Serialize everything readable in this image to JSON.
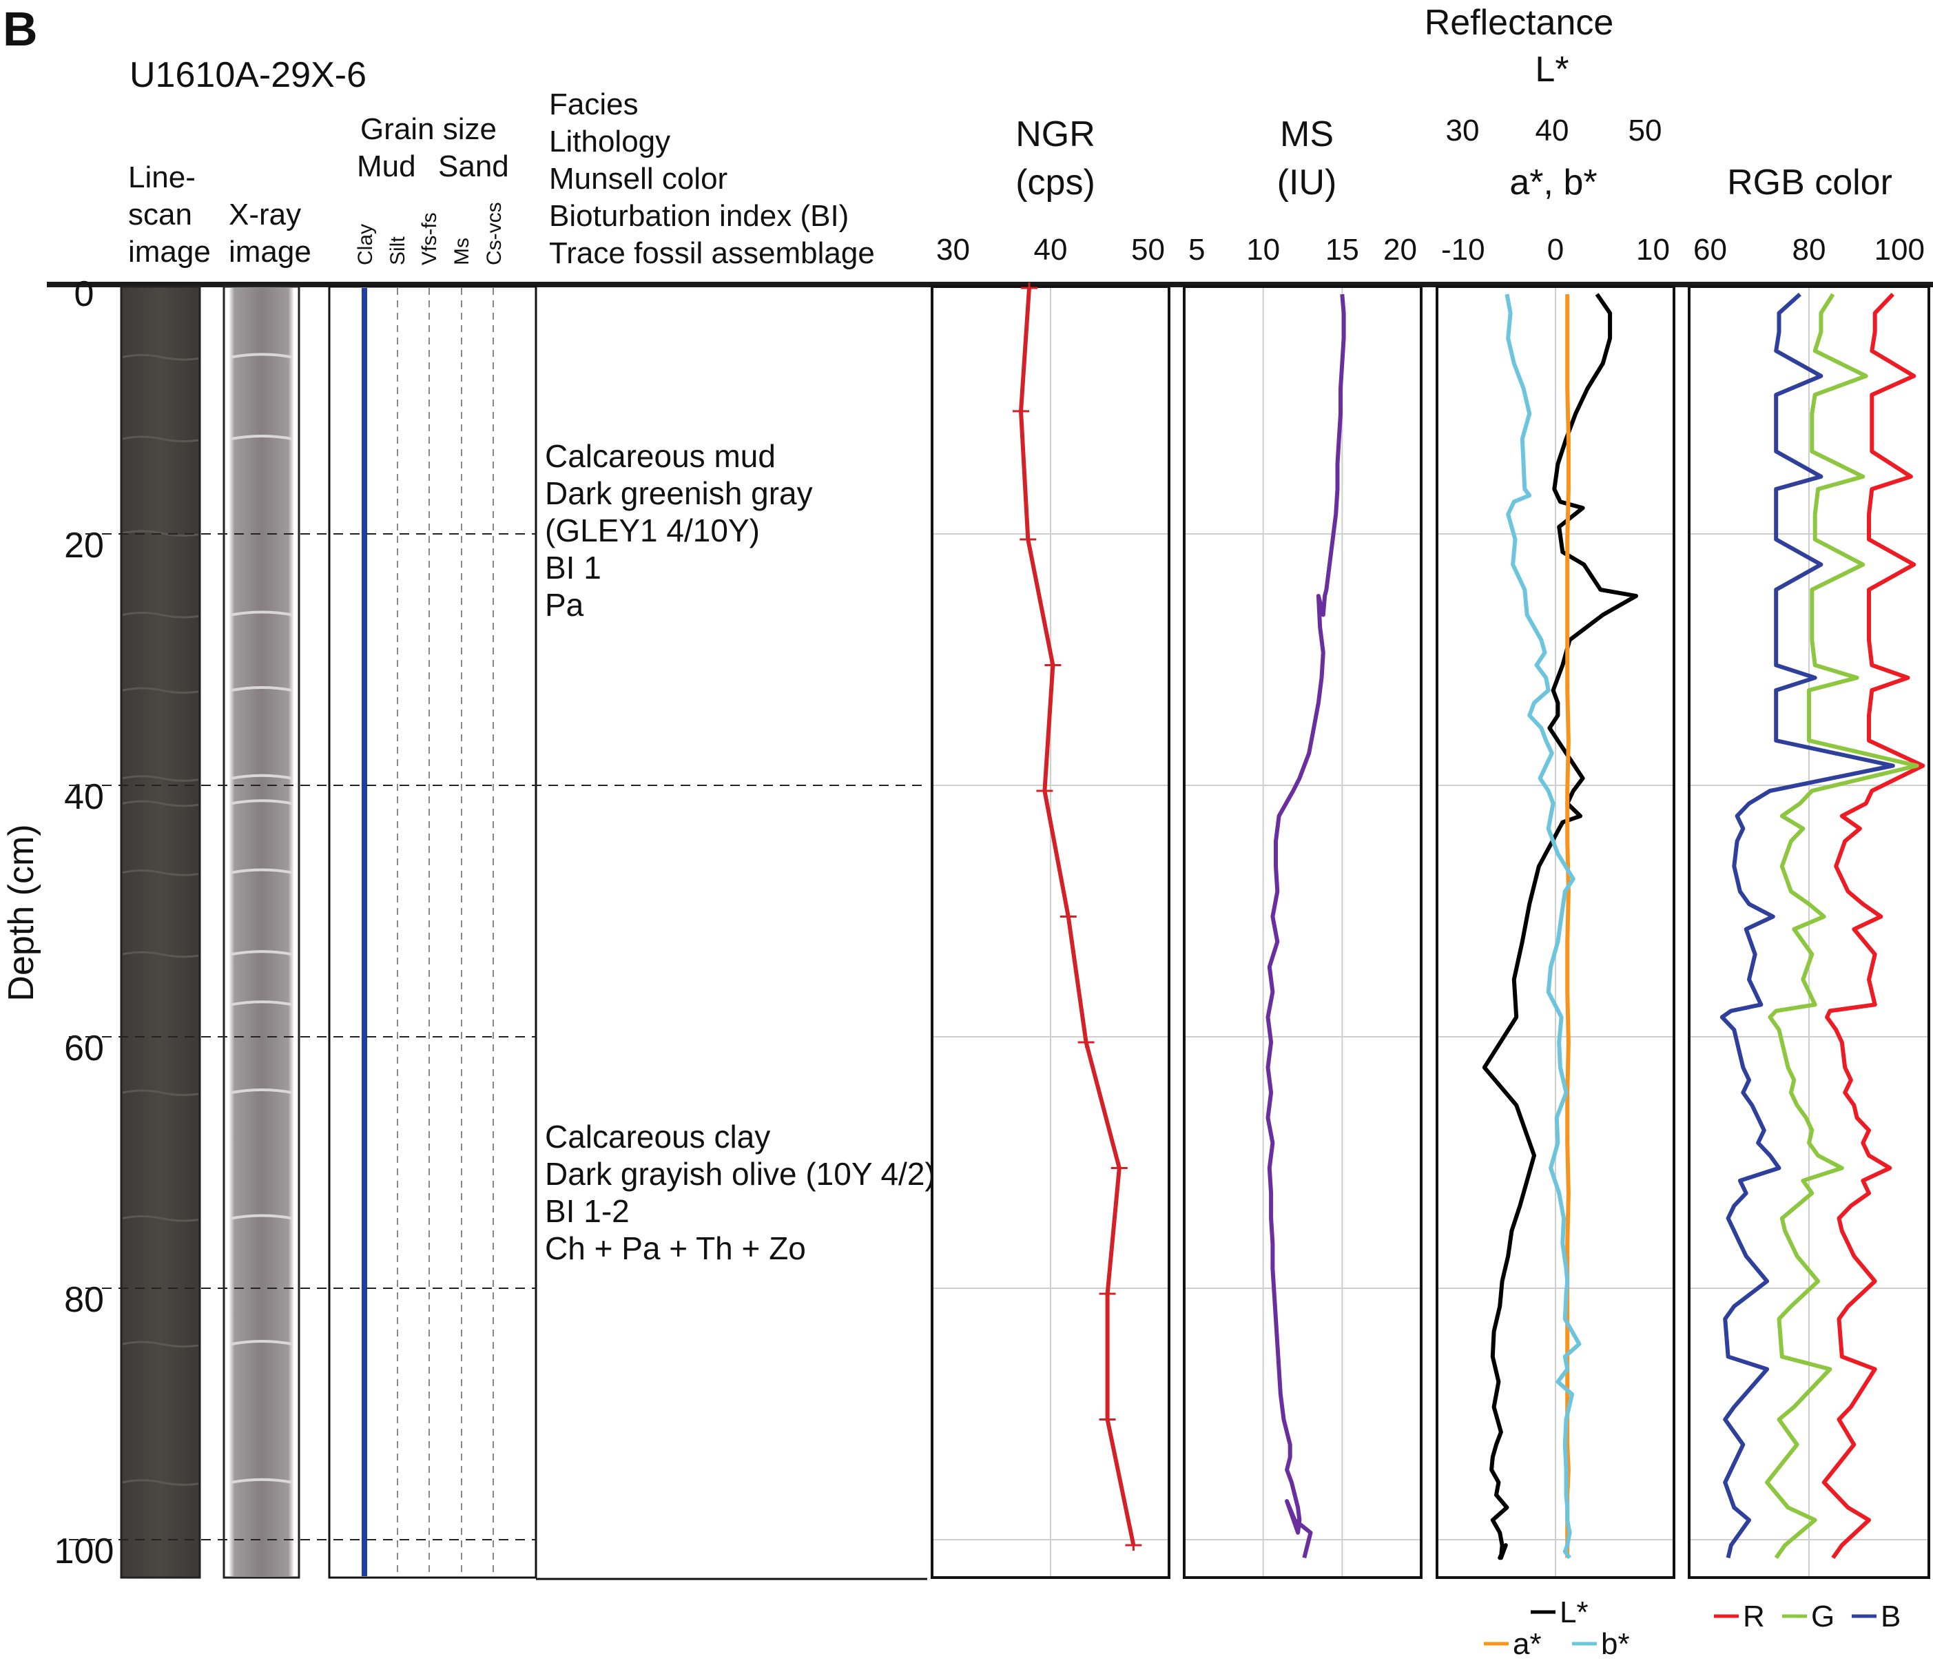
{
  "figure": {
    "panel_label": "B",
    "core_id": "U1610A-29X-6",
    "depth_axis": {
      "label": "Depth (cm)",
      "ticks": [
        0,
        20,
        40,
        60,
        80,
        100
      ]
    },
    "column_headers": {
      "linescan": [
        "Line-",
        "scan",
        "image"
      ],
      "xray": [
        "X-ray",
        "image"
      ],
      "grain_size": {
        "title": "Grain size",
        "mud": "Mud",
        "sand": "Sand",
        "classes": [
          "Clay",
          "Silt",
          "Vfs-fs",
          "Ms",
          "Cs-vcs"
        ]
      },
      "facies": [
        "Facies",
        "Lithology",
        "Munsell color",
        "Bioturbation index (BI)",
        "Trace fossil assemblage"
      ]
    },
    "facies_units": [
      {
        "lines": [
          "Calcareous mud",
          "Dark greenish gray",
          "(GLEY1 4/10Y)",
          "BI 1",
          "Pa"
        ]
      },
      {
        "lines": [
          "Calcareous clay",
          "Dark grayish olive (10Y 4/2)",
          "BI 1-2",
          "Ch + Pa + Th + Zo"
        ]
      }
    ],
    "colors": {
      "grain_line": "#1f3fa8",
      "ngr": "#d42027",
      "ms": "#6a2f9e",
      "L": "#000000",
      "a": "#f7941d",
      "b": "#6cc5dd",
      "R": "#ed1c24",
      "G": "#8dc63f",
      "B": "#2e3f9c"
    }
  },
  "chart_data": [
    {
      "type": "line",
      "id": "ngr",
      "title": [
        "NGR",
        "(cps)"
      ],
      "xlim": [
        30,
        50
      ],
      "ticks": [
        30,
        40,
        50
      ],
      "ylim": [
        0,
        103
      ],
      "ylabel": "Depth (cm)",
      "series": [
        {
          "x": [
            38.2,
            37.5,
            38.1,
            40.2,
            39.5,
            41.5,
            43.0,
            45.8,
            44.8,
            44.8,
            47.0
          ],
          "y": [
            0,
            9.8,
            20,
            30,
            40,
            50,
            60,
            70,
            80,
            90,
            100
          ]
        }
      ]
    },
    {
      "type": "line",
      "id": "ms",
      "title": [
        "MS",
        "(IU)"
      ],
      "xlim": [
        5,
        20
      ],
      "ticks": [
        5,
        10,
        15,
        20
      ],
      "ylim": [
        0,
        103
      ],
      "series": [
        {
          "x": [
            15.0,
            15.1,
            15.1,
            15.0,
            14.9,
            14.9,
            14.8,
            14.7,
            14.7,
            14.6,
            14.4,
            14.2,
            14.0,
            13.9,
            13.8,
            13.5,
            13.6,
            13.8,
            13.7,
            13.5,
            13.2,
            12.9,
            12.6,
            12.3,
            11.9,
            11.0,
            10.8,
            10.8,
            10.9,
            10.6,
            10.9,
            10.4,
            10.6,
            10.3,
            10.5,
            10.3,
            10.5,
            10.3,
            10.6,
            10.4,
            10.5,
            10.5,
            10.6,
            10.6,
            10.7,
            10.8,
            10.9,
            11.0,
            11.1,
            11.2,
            11.3,
            11.5,
            11.7,
            11.7,
            11.5,
            11.8,
            12.0,
            12.2,
            12.3,
            12.2,
            11.5,
            12.0,
            13.0,
            12.8,
            12.6
          ],
          "y": [
            0.5,
            2,
            4,
            6,
            8,
            10,
            12,
            14,
            16,
            18,
            20,
            22,
            24,
            24.5,
            26,
            24.5,
            27,
            29,
            31,
            33,
            35,
            37,
            38,
            39,
            40,
            42,
            44,
            46,
            48,
            50,
            52,
            54,
            56,
            58,
            60,
            62,
            64,
            66,
            68,
            70,
            72,
            74,
            76,
            78,
            80,
            82,
            84,
            86,
            88,
            89,
            90,
            91,
            92,
            93,
            94,
            95,
            96,
            97,
            98,
            99,
            96.5,
            98,
            99,
            100,
            101
          ]
        }
      ]
    },
    {
      "type": "line",
      "id": "reflectance",
      "title": [
        "Reflectance",
        "L*"
      ],
      "x_title_bottom": "a*, b*",
      "xlim_top": [
        30,
        50
      ],
      "ticks_top": [
        30,
        40,
        50
      ],
      "xlim": [
        -10,
        10
      ],
      "ticks": [
        -10,
        0,
        10
      ],
      "ylim": [
        0,
        103
      ],
      "legend": [
        "L*",
        "a*",
        "b*"
      ],
      "series": [
        {
          "name": "L*",
          "x": [
            43.5,
            44.6,
            44.6,
            44.0,
            42.7,
            41.7,
            40.9,
            40.2,
            39.9,
            40.4,
            42.3,
            40.3,
            40.6,
            42.4,
            43.8,
            46.8,
            44.0,
            41.2,
            40.6,
            39.8,
            40.2,
            40.2,
            39.5,
            40.2,
            42.3,
            41.5,
            41.0,
            42.1,
            40.6,
            38.6,
            37.8,
            37.2,
            36.5,
            36.7,
            34.0,
            36.7,
            38.2,
            37.6,
            37.0,
            36.3,
            36.0,
            35.5,
            35.3,
            34.8,
            34.7,
            35.2,
            34.8,
            35.4,
            35.0,
            34.7,
            34.6,
            35.2,
            35.0,
            35.9,
            34.7,
            35.3,
            35.5,
            35.4,
            35.8,
            35.3,
            35.4
          ],
          "y": [
            0.5,
            2,
            4,
            6,
            8,
            10,
            12,
            14,
            16,
            17,
            17.5,
            19,
            21,
            22,
            24,
            24.5,
            26,
            28,
            30,
            32,
            33,
            34,
            35,
            36,
            39,
            40,
            41,
            42,
            42.5,
            46,
            49,
            52,
            55,
            58,
            62,
            65,
            69,
            71,
            73,
            75,
            77,
            79,
            81,
            83,
            85,
            87,
            89,
            91,
            92,
            93,
            94,
            95,
            96,
            97,
            98,
            99,
            100,
            101,
            100,
            101,
            101
          ]
        },
        {
          "name": "a*",
          "x": [
            1.0,
            1.0,
            1.0,
            1.1,
            1.1,
            1.0,
            1.0,
            1.0,
            1.0,
            1.1,
            1.0,
            1.0,
            1.1,
            1.0,
            1.0,
            1.1,
            1.0,
            1.0,
            1.1,
            1.0,
            1.0,
            1.0,
            1.0,
            1.0,
            1.0,
            1.0,
            1.0,
            1.1,
            1.0,
            1.0,
            1.0,
            1.0
          ],
          "y": [
            0.5,
            4,
            8,
            12,
            16,
            20,
            24,
            28,
            32,
            36,
            40,
            44,
            48,
            52,
            56,
            60,
            64,
            68,
            72,
            76,
            80,
            82,
            84,
            86,
            88,
            90,
            92,
            94,
            96,
            98,
            100,
            101
          ]
        },
        {
          "name": "b*",
          "x": [
            -4.1,
            -3.8,
            -4.0,
            -3.5,
            -2.7,
            -2.2,
            -2.8,
            -2.7,
            -2.6,
            -2.2,
            -3.5,
            -4.0,
            -3.4,
            -3.6,
            -2.6,
            -2.4,
            -1.2,
            -0.9,
            -1.6,
            -0.8,
            -0.6,
            -1.8,
            -2.2,
            -1.2,
            -0.8,
            -0.3,
            -1.3,
            -0.6,
            -0.2,
            -0.4,
            -0.6,
            0.2,
            1.5,
            0.8,
            0.5,
            0.2,
            -0.4,
            -0.6,
            0.5,
            0.3,
            0.4,
            0.9,
            0.1,
            0.2,
            -0.4,
            0.3,
            0.7,
            0.6,
            0.9,
            1.0,
            0.9,
            0.8,
            2.0,
            0.8,
            1.0,
            0.2,
            1.4,
            0.9,
            0.8,
            0.9,
            0.9,
            1.0,
            1.0,
            1.2,
            1.0,
            0.8,
            1.2
          ],
          "y": [
            0.5,
            2,
            4,
            6,
            8,
            10,
            12,
            14,
            16,
            16.5,
            17,
            18,
            20,
            22,
            24,
            26,
            28,
            29,
            30,
            31,
            32,
            33,
            34,
            35,
            36,
            37,
            39,
            40,
            41,
            42,
            43,
            45,
            47,
            48,
            50,
            52,
            54,
            56,
            58,
            60,
            62,
            64,
            66,
            68,
            70,
            72,
            74,
            76,
            78,
            79,
            80,
            82,
            84,
            85,
            86,
            87,
            88,
            90,
            92,
            94,
            96,
            97,
            98,
            99,
            100,
            100.5,
            101
          ]
        }
      ]
    },
    {
      "type": "line",
      "id": "rgb",
      "title": "RGB color",
      "xlim": [
        60,
        100
      ],
      "ticks": [
        60,
        80,
        100
      ],
      "ylim": [
        0,
        103
      ],
      "legend": [
        "R",
        "G",
        "B"
      ],
      "series": [
        {
          "name": "R",
          "x": [
            94.0,
            91.0,
            91.0,
            90.5,
            97.5,
            90.5,
            90.5,
            90.5,
            97.0,
            90.5,
            90.0,
            90.0,
            97.5,
            90.0,
            90.0,
            90.0,
            90.5,
            96.5,
            90.5,
            90.0,
            90.0,
            99.0,
            90.5,
            89.5,
            85.5,
            88.5,
            86.0,
            84.5,
            86.5,
            89.0,
            92.0,
            87.5,
            91.0,
            90.0,
            91.0,
            83.5,
            83.0,
            84.5,
            85.5,
            86.0,
            87.0,
            86.0,
            87.5,
            88.0,
            90.0,
            89.0,
            90.0,
            93.5,
            89.0,
            90.0,
            87.0,
            85.0,
            85.5,
            86.5,
            87.5,
            91.0,
            86.5,
            85.0,
            85.5,
            91.0,
            87.0,
            85.0,
            87.5,
            82.5,
            86.5,
            90.0,
            85.5,
            84.0
          ],
          "y": [
            0.5,
            2,
            3.5,
            5,
            7,
            8.5,
            10,
            13,
            15,
            16,
            18,
            20,
            22,
            24,
            26,
            28,
            30,
            31,
            32,
            34,
            36,
            38,
            40,
            41,
            42,
            43,
            44,
            46,
            48,
            49,
            50,
            51,
            53,
            55,
            57,
            57.5,
            58,
            59,
            60,
            62,
            63,
            64,
            65,
            66,
            67,
            68,
            69,
            70,
            71,
            72,
            73,
            74,
            75,
            76,
            77,
            79,
            81,
            82,
            85,
            86,
            89,
            90,
            92,
            95,
            97,
            98,
            100,
            101
          ]
        },
        {
          "name": "G",
          "x": [
            84.0,
            82.0,
            82.0,
            81.0,
            89.5,
            81.0,
            80.5,
            80.5,
            89.0,
            81.5,
            81.0,
            81.0,
            89.0,
            80.5,
            80.5,
            80.5,
            81.0,
            88.0,
            80.0,
            80.0,
            80.0,
            98.0,
            80.5,
            78.5,
            75.5,
            79.0,
            77.0,
            75.5,
            77.0,
            80.0,
            82.5,
            77.5,
            80.5,
            79.0,
            81.0,
            74.5,
            73.5,
            75.0,
            75.5,
            76.5,
            77.5,
            77.0,
            78.0,
            79.5,
            80.5,
            80.0,
            81.5,
            85.5,
            79.0,
            80.5,
            78.0,
            75.5,
            76.0,
            77.0,
            78.0,
            81.5,
            77.0,
            75.0,
            75.5,
            83.5,
            77.5,
            75.0,
            78.0,
            73.0,
            76.5,
            81.0,
            76.0,
            74.5
          ],
          "y": [
            0.5,
            2,
            3.5,
            5,
            7,
            8.5,
            10,
            13,
            15,
            16,
            18,
            20,
            22,
            24,
            26,
            28,
            30,
            31,
            32,
            34,
            36,
            38,
            40,
            41,
            42,
            43,
            44,
            46,
            48,
            49,
            50,
            51,
            53,
            55,
            57,
            57.5,
            58,
            59,
            60,
            62,
            63,
            64,
            65,
            66,
            67,
            68,
            69,
            70,
            71,
            72,
            73,
            74,
            75,
            76,
            77,
            79,
            81,
            82,
            85,
            86,
            89,
            90,
            92,
            95,
            97,
            98,
            100,
            101
          ]
        },
        {
          "name": "B",
          "x": [
            78.5,
            75.0,
            75.0,
            74.5,
            82.0,
            74.5,
            74.5,
            74.5,
            82.0,
            74.5,
            74.5,
            74.5,
            82.0,
            74.5,
            74.5,
            74.5,
            74.5,
            81.0,
            74.5,
            74.5,
            74.5,
            94.0,
            73.5,
            70.0,
            68.0,
            69.0,
            68.0,
            67.5,
            68.5,
            70.0,
            74.0,
            69.5,
            71.0,
            70.0,
            72.0,
            67.0,
            65.5,
            67.5,
            68.0,
            69.0,
            70.0,
            69.0,
            70.5,
            71.5,
            72.5,
            71.5,
            73.5,
            75.0,
            68.5,
            69.5,
            67.5,
            66.5,
            67.5,
            68.5,
            69.5,
            73.0,
            67.5,
            66.0,
            66.5,
            73.0,
            67.5,
            66.0,
            69.0,
            66.0,
            67.5,
            70.0,
            67.0,
            66.5
          ],
          "y": [
            0.5,
            2,
            3.5,
            5,
            7,
            8.5,
            10,
            13,
            15,
            16,
            18,
            20,
            22,
            24,
            26,
            28,
            30,
            31,
            32,
            34,
            36,
            38,
            40,
            41,
            42,
            43,
            44,
            46,
            48,
            49,
            50,
            51,
            53,
            55,
            57,
            57.5,
            58,
            59,
            60,
            62,
            63,
            64,
            65,
            66,
            67,
            68,
            69,
            70,
            71,
            72,
            73,
            74,
            75,
            76,
            77,
            79,
            81,
            82,
            85,
            86,
            89,
            90,
            92,
            95,
            97,
            98,
            100,
            101
          ]
        }
      ]
    }
  ]
}
